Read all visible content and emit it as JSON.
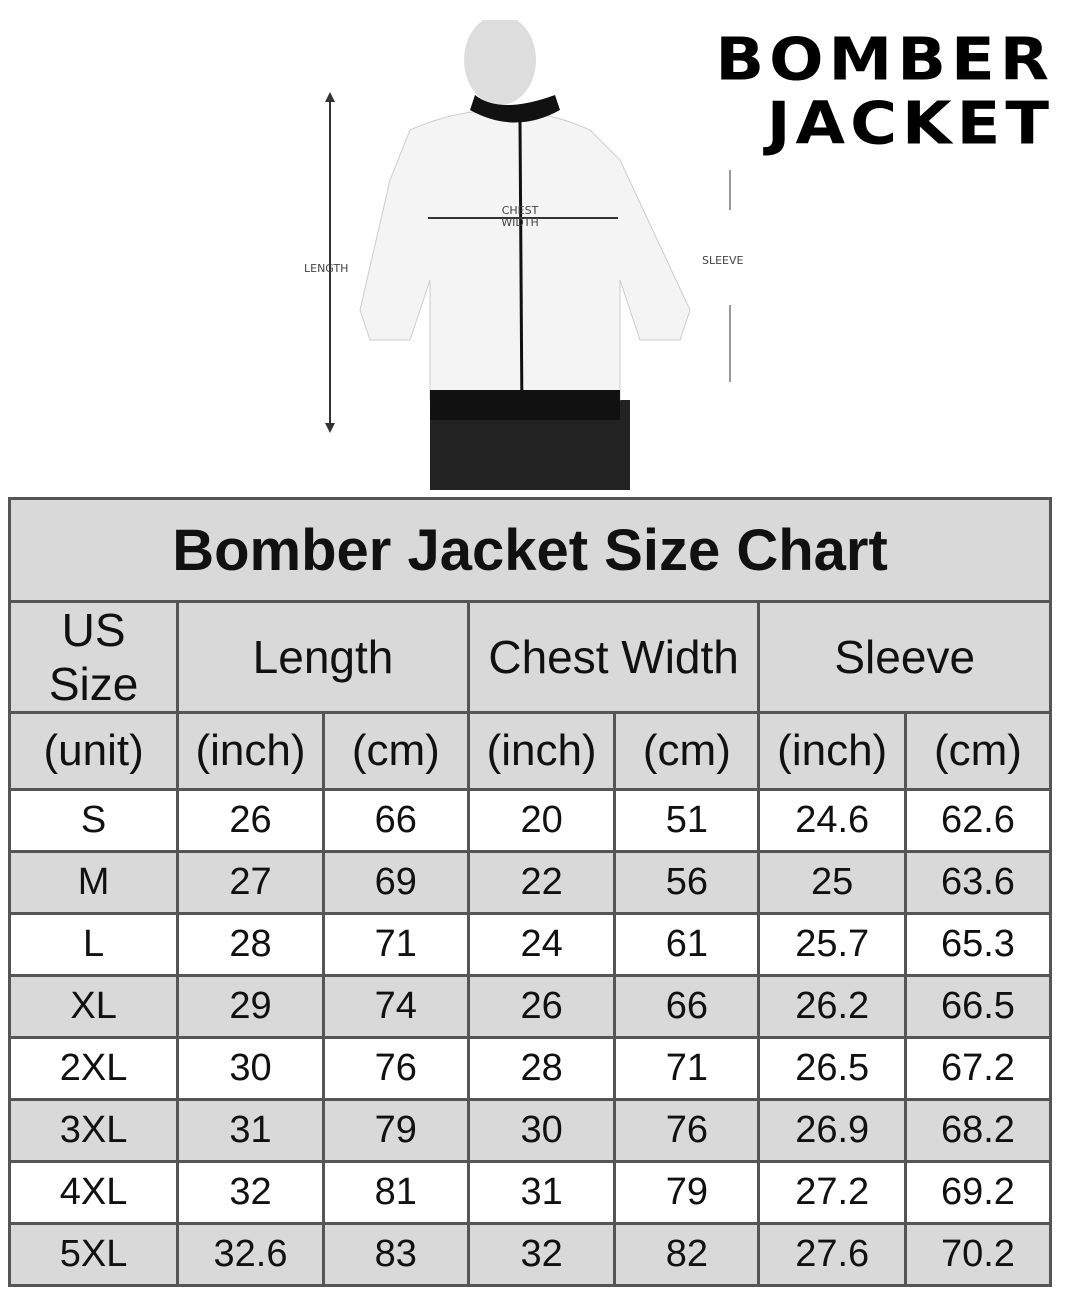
{
  "brand": {
    "line1": "BOMBER",
    "line2": "JACKET"
  },
  "diagram": {
    "length": "LENGTH",
    "chest_line1": "CHEST",
    "chest_line2": "WIDTH",
    "sleeve": "SLEEVE"
  },
  "table": {
    "title": "Bomber Jacket Size Chart",
    "headers": [
      "US Size",
      "Length",
      "Chest Width",
      "Sleeve"
    ],
    "units": [
      "(unit)",
      "(inch)",
      "(cm)",
      "(inch)",
      "(cm)",
      "(inch)",
      "(cm)"
    ],
    "rows": [
      [
        "S",
        "26",
        "66",
        "20",
        "51",
        "24.6",
        "62.6"
      ],
      [
        "M",
        "27",
        "69",
        "22",
        "56",
        "25",
        "63.6"
      ],
      [
        "L",
        "28",
        "71",
        "24",
        "61",
        "25.7",
        "65.3"
      ],
      [
        "XL",
        "29",
        "74",
        "26",
        "66",
        "26.2",
        "66.5"
      ],
      [
        "2XL",
        "30",
        "76",
        "28",
        "71",
        "26.5",
        "67.2"
      ],
      [
        "3XL",
        "31",
        "79",
        "30",
        "76",
        "26.9",
        "68.2"
      ],
      [
        "4XL",
        "32",
        "81",
        "31",
        "79",
        "27.2",
        "69.2"
      ],
      [
        "5XL",
        "32.6",
        "83",
        "32",
        "82",
        "27.6",
        "70.2"
      ]
    ]
  }
}
